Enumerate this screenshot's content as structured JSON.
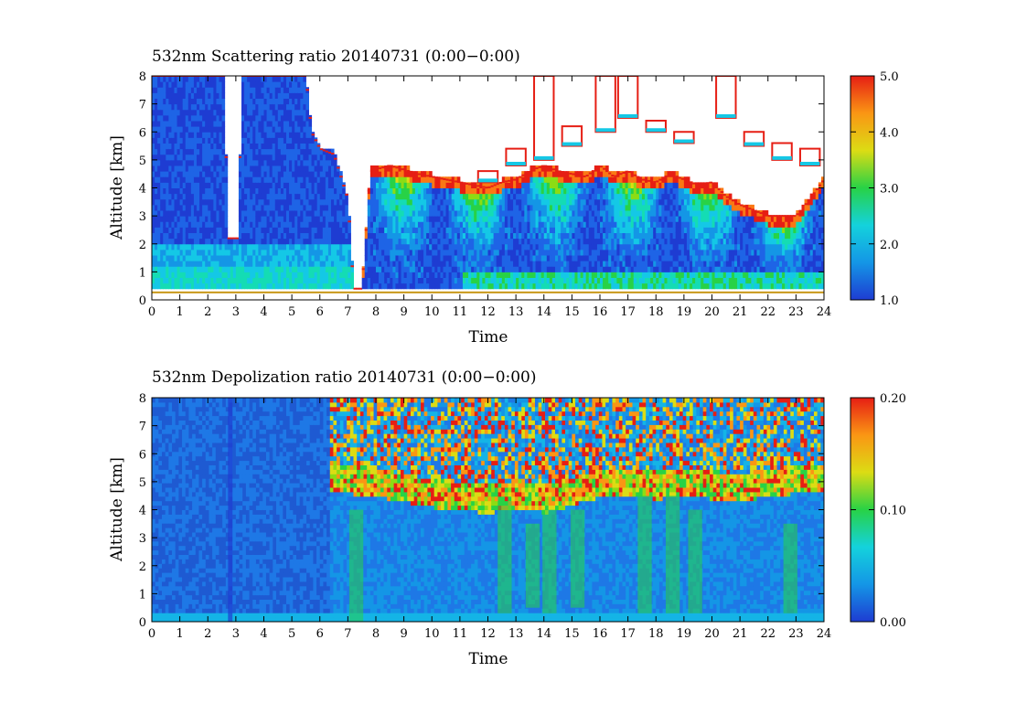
{
  "chart_data": [
    {
      "type": "heatmap",
      "title": "532nm Scattering ratio  20140731 (0:00−0:00)",
      "xlabel": "Time",
      "ylabel": "Altitude [km]",
      "xlim": [
        0,
        24
      ],
      "ylim": [
        0,
        8
      ],
      "x_ticks": [
        0,
        1,
        2,
        3,
        4,
        5,
        6,
        7,
        8,
        9,
        10,
        11,
        12,
        13,
        14,
        15,
        16,
        17,
        18,
        19,
        20,
        21,
        22,
        23,
        24
      ],
      "y_ticks": [
        0,
        1,
        2,
        3,
        4,
        5,
        6,
        7,
        8
      ],
      "colorbar": {
        "range": [
          1.0,
          5.0
        ],
        "ticks": [
          "1.0",
          "2.0",
          "3.0",
          "4.0",
          "5.0"
        ],
        "colors": [
          "#1e3cd2",
          "#1496e6",
          "#14d2dc",
          "#28d246",
          "#dcdc14",
          "#fa9614",
          "#e61e14"
        ]
      },
      "cloud_top_km": [
        [
          0,
          8
        ],
        [
          2.6,
          8
        ],
        [
          2.7,
          2.2
        ],
        [
          3.1,
          2.2
        ],
        [
          3.2,
          8
        ],
        [
          5.5,
          8
        ],
        [
          5.7,
          6
        ],
        [
          6.0,
          5.4
        ],
        [
          6.5,
          5.2
        ],
        [
          7.0,
          3.6
        ],
        [
          7.2,
          0.4
        ],
        [
          7.5,
          0.4
        ],
        [
          7.8,
          4.6
        ],
        [
          8.5,
          4.8
        ],
        [
          9.5,
          4.5
        ],
        [
          10.5,
          4.3
        ],
        [
          11.5,
          4.1
        ],
        [
          12.0,
          4.0
        ],
        [
          12.5,
          4.2
        ],
        [
          13.0,
          4.3
        ],
        [
          13.5,
          4.6
        ],
        [
          14.0,
          4.8
        ],
        [
          14.5,
          4.6
        ],
        [
          15.0,
          4.5
        ],
        [
          15.5,
          4.4
        ],
        [
          16.0,
          4.8
        ],
        [
          16.5,
          4.4
        ],
        [
          17.0,
          4.6
        ],
        [
          17.5,
          4.3
        ],
        [
          18.0,
          4.2
        ],
        [
          18.5,
          4.5
        ],
        [
          19.0,
          4.3
        ],
        [
          19.5,
          4.1
        ],
        [
          20.0,
          4.2
        ],
        [
          20.5,
          3.7
        ],
        [
          21.0,
          3.4
        ],
        [
          21.5,
          3.2
        ],
        [
          22.0,
          3.0
        ],
        [
          22.5,
          3.0
        ],
        [
          23.0,
          3.0
        ],
        [
          23.5,
          3.6
        ],
        [
          24,
          4.3
        ]
      ],
      "upper_cloud_km": [
        [
          12.0,
          4.2,
          4.6
        ],
        [
          13.0,
          4.8,
          5.4
        ],
        [
          14.0,
          5.0,
          8.0
        ],
        [
          15.0,
          5.5,
          6.2
        ],
        [
          16.2,
          6.0,
          8.0
        ],
        [
          17.0,
          6.5,
          8.0
        ],
        [
          18.0,
          6.0,
          6.4
        ],
        [
          19.0,
          5.6,
          6.0
        ],
        [
          20.5,
          6.5,
          8.0
        ],
        [
          21.5,
          5.5,
          6.0
        ],
        [
          22.5,
          5.0,
          5.6
        ],
        [
          23.5,
          4.8,
          5.4
        ]
      ]
    },
    {
      "type": "heatmap",
      "title": "532nm Depolization ratio  20140731 (0:00−0:00)",
      "xlabel": "Time",
      "ylabel": "Altitude [km]",
      "xlim": [
        0,
        24
      ],
      "ylim": [
        0,
        8
      ],
      "x_ticks": [
        0,
        1,
        2,
        3,
        4,
        5,
        6,
        7,
        8,
        9,
        10,
        11,
        12,
        13,
        14,
        15,
        16,
        17,
        18,
        19,
        20,
        21,
        22,
        23,
        24
      ],
      "y_ticks": [
        0,
        1,
        2,
        3,
        4,
        5,
        6,
        7,
        8
      ],
      "colorbar": {
        "range": [
          0.0,
          0.2
        ],
        "ticks": [
          "0.00",
          "0.10",
          "0.20"
        ],
        "colors": [
          "#1e3cd2",
          "#1496e6",
          "#14d2dc",
          "#28d246",
          "#dcdc14",
          "#fa9614",
          "#e61e14"
        ]
      },
      "depol_layer_km": [
        [
          6.0,
          5.2
        ],
        [
          7.0,
          5.0
        ],
        [
          8.0,
          4.9
        ],
        [
          9.0,
          4.7
        ],
        [
          10.0,
          4.5
        ],
        [
          11.0,
          4.4
        ],
        [
          12.0,
          4.3
        ],
        [
          13.0,
          4.5
        ],
        [
          14.0,
          4.3
        ],
        [
          15.0,
          4.6
        ],
        [
          16.0,
          4.9
        ],
        [
          17.0,
          4.9
        ],
        [
          18.0,
          4.8
        ],
        [
          19.0,
          4.9
        ],
        [
          20.0,
          4.8
        ],
        [
          21.0,
          4.7
        ],
        [
          22.0,
          4.9
        ],
        [
          23.0,
          5.0
        ],
        [
          24.0,
          5.0
        ]
      ],
      "green_columns": [
        [
          12.6,
          0.3,
          4.3
        ],
        [
          13.6,
          0.5,
          3.5
        ],
        [
          14.2,
          0.3,
          4.0
        ],
        [
          15.2,
          0.5,
          4.0
        ],
        [
          17.6,
          0.3,
          4.5
        ],
        [
          18.6,
          0.3,
          4.5
        ],
        [
          19.4,
          0.3,
          4.0
        ],
        [
          22.8,
          0.3,
          3.5
        ],
        [
          7.3,
          0.0,
          4.0
        ]
      ],
      "high_noise_span": [
        6.3,
        24.0
      ],
      "wedge": [
        [
          2.8,
          0.0,
          8.0
        ]
      ]
    }
  ]
}
